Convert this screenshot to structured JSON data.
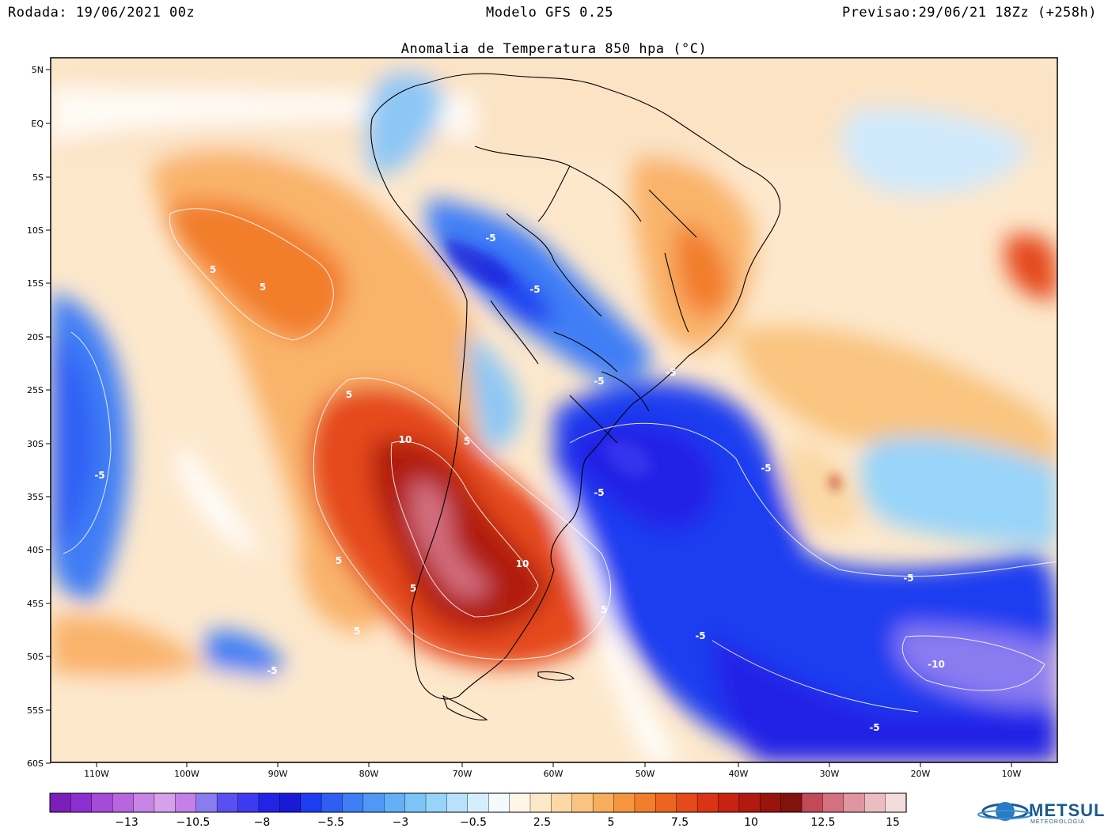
{
  "header": {
    "run": "Rodada: 19/06/2021 00z",
    "model": "Modelo GFS 0.25",
    "forecast": "Previsao:29/06/21 18Zz (+258h)"
  },
  "title": "Anomalia de Temperatura 850 hpa (°C)",
  "axes": {
    "lat_labels": [
      "5N",
      "EQ",
      "5S",
      "10S",
      "15S",
      "20S",
      "25S",
      "30S",
      "35S",
      "40S",
      "45S",
      "50S",
      "55S",
      "60S"
    ],
    "lon_labels": [
      "110W",
      "100W",
      "90W",
      "80W",
      "70W",
      "60W",
      "50W",
      "40W",
      "30W",
      "20W",
      "10W"
    ]
  },
  "contour_labels": [
    "5",
    "5",
    "-5",
    "-5",
    "-5",
    "-5",
    "5",
    "10",
    "5",
    "-5",
    "-5",
    "5",
    "5",
    "10",
    "5",
    "-5",
    "5",
    "-5",
    "-5",
    "-10",
    "-5",
    "-5"
  ],
  "colorbar": {
    "labels": [
      "-13",
      "-10.5",
      "-8",
      "-5.5",
      "-3",
      "-0.5",
      "2.5",
      "5",
      "7.5",
      "10",
      "12.5",
      "15"
    ],
    "colors": [
      "#7a1fb8",
      "#8f2ed0",
      "#a64ad9",
      "#b866e0",
      "#c884e6",
      "#d6a0ec",
      "#c47fe8",
      "#8a7cf0",
      "#5a4ff0",
      "#3d3bf0",
      "#2323e6",
      "#1a1ad6",
      "#1e3cf0",
      "#2f5ef5",
      "#3f7ef5",
      "#5098f5",
      "#63b0f7",
      "#7cc4f8",
      "#98d4f9",
      "#b8e2fb",
      "#d6eefc",
      "#f4fbff",
      "#fff5e6",
      "#fde8c8",
      "#fbd8a4",
      "#f9c47f",
      "#f7ad5c",
      "#f5963f",
      "#f27d2a",
      "#ed6320",
      "#e54a1a",
      "#db3415",
      "#c82212",
      "#b01a10",
      "#98150e",
      "#82120c",
      "#c24a58",
      "#d47080",
      "#e096a0",
      "#ebbcc0",
      "#f5dcdc"
    ]
  },
  "logo": {
    "name": "METSUL",
    "sub": "METEOROLOGIA"
  }
}
